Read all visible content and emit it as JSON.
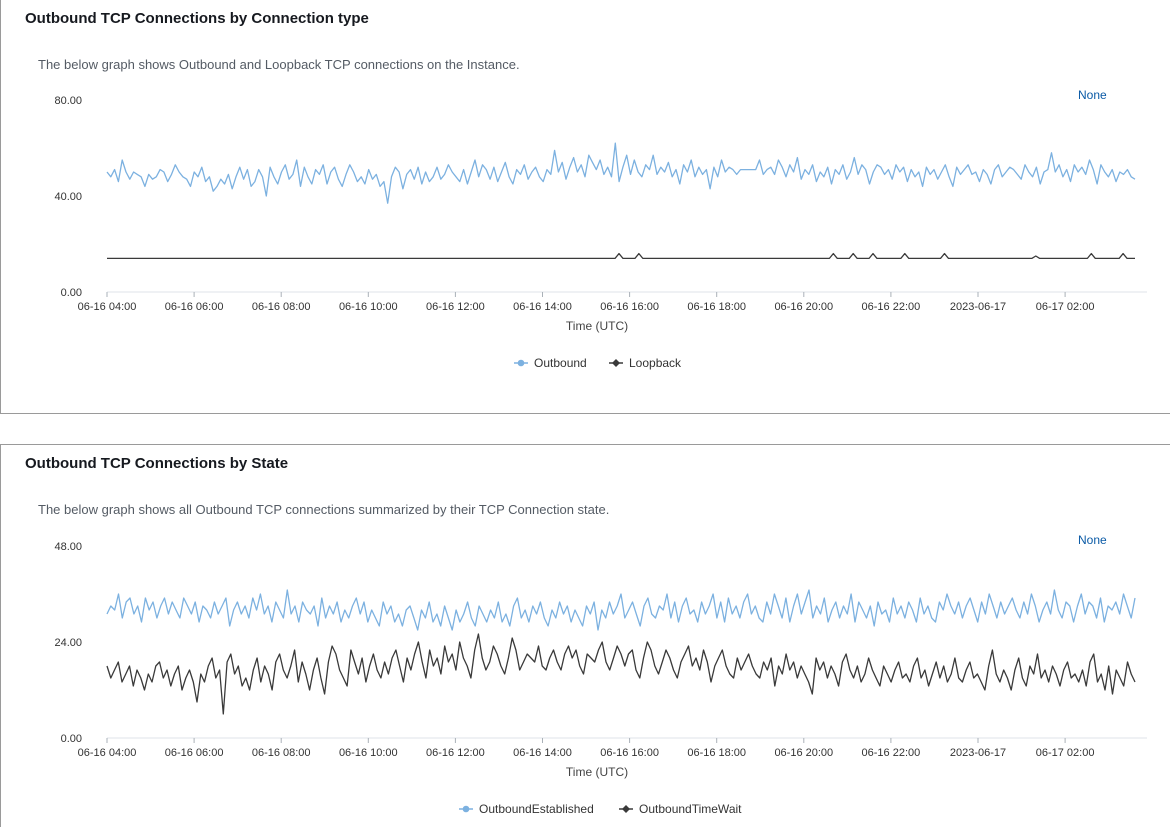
{
  "panels": [
    {
      "title": "Outbound TCP Connections by Connection type",
      "description": "The below graph shows Outbound and Loopback TCP connections on the Instance.",
      "none_label": "None"
    },
    {
      "title": "Outbound TCP Connections by State",
      "description": "The below graph shows all Outbound TCP connections summarized by their TCP Connection state.",
      "none_label": "None"
    }
  ],
  "chart_data": [
    {
      "type": "line",
      "ylim": [
        0,
        80
      ],
      "y_ticks": [
        "0.00",
        "40.00",
        "80.00"
      ],
      "x_tick_labels": [
        "06-16 04:00",
        "06-16 06:00",
        "06-16 08:00",
        "06-16 10:00",
        "06-16 12:00",
        "06-16 14:00",
        "06-16 16:00",
        "06-16 18:00",
        "06-16 20:00",
        "06-16 22:00",
        "2023-06-17",
        "06-17 02:00"
      ],
      "xlabel": "Time (UTC)",
      "grid": false,
      "legend_position": "bottom",
      "series": [
        {
          "name": "Outbound",
          "color": "#7cb1e0",
          "values": [
            50,
            48,
            51,
            46,
            55,
            50,
            47,
            50,
            49,
            48,
            44,
            49,
            47,
            48,
            51,
            50,
            46,
            49,
            53,
            50,
            48,
            47,
            44,
            50,
            48,
            52,
            46,
            48,
            42,
            44,
            47,
            45,
            49,
            43,
            48,
            52,
            47,
            51,
            44,
            46,
            51,
            48,
            40,
            52,
            48,
            45,
            50,
            53,
            47,
            49,
            55,
            44,
            52,
            48,
            45,
            51,
            49,
            53,
            45,
            50,
            52,
            47,
            44,
            49,
            53,
            50,
            46,
            48,
            45,
            51,
            47,
            49,
            44,
            46,
            37,
            48,
            52,
            50,
            43,
            49,
            51,
            47,
            52,
            45,
            50,
            46,
            48,
            52,
            47,
            49,
            53,
            50,
            48,
            46,
            51,
            45,
            50,
            55,
            48,
            53,
            51,
            47,
            52,
            46,
            50,
            54,
            48,
            45,
            51,
            49,
            53,
            47,
            50,
            52,
            48,
            46,
            51,
            49,
            59,
            50,
            54,
            47,
            52,
            56,
            50,
            53,
            48,
            57,
            54,
            51,
            55,
            49,
            52,
            48,
            62,
            46,
            52,
            57,
            49,
            55,
            50,
            48,
            53,
            51,
            57,
            49,
            52,
            50,
            54,
            48,
            51,
            45,
            53,
            50,
            55,
            48,
            52,
            49,
            51,
            43,
            52,
            48,
            55,
            50,
            52,
            51,
            49,
            51,
            51,
            51,
            51,
            51,
            55,
            49,
            51,
            52,
            49,
            55,
            52,
            48,
            53,
            50,
            56,
            47,
            51,
            49,
            53,
            46,
            50,
            48,
            52,
            45,
            51,
            49,
            53,
            47,
            50,
            56,
            49,
            53,
            51,
            45,
            50,
            53,
            52,
            49,
            51,
            47,
            53,
            50,
            52,
            46,
            51,
            48,
            50,
            44,
            52,
            49,
            51,
            47,
            50,
            53,
            48,
            44,
            52,
            49,
            51,
            53,
            49,
            50,
            46,
            51,
            49,
            45,
            51,
            53,
            48,
            50,
            52,
            51,
            49,
            47,
            53,
            50,
            48,
            52,
            45,
            50,
            51,
            58,
            50,
            53,
            48,
            51,
            46,
            53,
            50,
            52,
            49,
            55,
            51,
            45,
            53,
            50,
            48,
            51,
            46,
            50,
            49,
            51,
            48,
            47
          ],
          "values_note": ""
        },
        {
          "name": "Loopback",
          "color": "#3a3a3a",
          "values_constant": 14,
          "spikes": [
            {
              "x_label": "06-16 15:00",
              "value": 16
            },
            {
              "x_label": "06-16 15:15",
              "value": 16
            },
            {
              "x_label": "06-16 18:30",
              "value": 16
            },
            {
              "x_label": "06-16 18:50",
              "value": 16
            },
            {
              "x_label": "06-16 19:05",
              "value": 16
            },
            {
              "x_label": "06-16 19:30",
              "value": 16
            },
            {
              "x_label": "06-16 20:10",
              "value": 16
            },
            {
              "x_label": "2023-06-17 00:20",
              "value": 15
            },
            {
              "x_label": "06-17 01:55",
              "value": 16
            },
            {
              "x_label": "06-17 02:25",
              "value": 16
            }
          ]
        }
      ]
    },
    {
      "type": "line",
      "ylim": [
        0,
        48
      ],
      "y_ticks": [
        "0.00",
        "24.00",
        "48.00"
      ],
      "x_tick_labels": [
        "06-16 04:00",
        "06-16 06:00",
        "06-16 08:00",
        "06-16 10:00",
        "06-16 12:00",
        "06-16 14:00",
        "06-16 16:00",
        "06-16 18:00",
        "06-16 20:00",
        "06-16 22:00",
        "2023-06-17",
        "06-17 02:00"
      ],
      "xlabel": "Time (UTC)",
      "grid": false,
      "legend_position": "bottom",
      "series": [
        {
          "name": "OutboundEstablished",
          "color": "#7cb1e0",
          "values": [
            31,
            33,
            32,
            36,
            30,
            34,
            35,
            31,
            33,
            29,
            35,
            32,
            34,
            30,
            33,
            35,
            31,
            34,
            32,
            30,
            35,
            33,
            31,
            34,
            29,
            33,
            32,
            30,
            34,
            31,
            33,
            35,
            28,
            32,
            34,
            31,
            33,
            30,
            35,
            32,
            36,
            31,
            33,
            29,
            34,
            32,
            30,
            37,
            31,
            33,
            29,
            34,
            32,
            31,
            33,
            28,
            35,
            30,
            33,
            31,
            34,
            29,
            32,
            30,
            33,
            35,
            31,
            34,
            29,
            32,
            30,
            28,
            34,
            31,
            33,
            29,
            31,
            28,
            32,
            33,
            30,
            27,
            32,
            30,
            34,
            29,
            31,
            28,
            33,
            30,
            27,
            32,
            29,
            31,
            34,
            30,
            28,
            33,
            31,
            29,
            32,
            30,
            34,
            29,
            31,
            28,
            33,
            35,
            30,
            32,
            29,
            33,
            31,
            34,
            30,
            28,
            32,
            30,
            34,
            31,
            33,
            29,
            32,
            30,
            28,
            33,
            31,
            34,
            27,
            32,
            30,
            34,
            31,
            33,
            36,
            30,
            32,
            34,
            31,
            28,
            33,
            35,
            31,
            30,
            33,
            32,
            36,
            30,
            34,
            29,
            33,
            35,
            31,
            32,
            29,
            34,
            31,
            33,
            36,
            30,
            34,
            29,
            35,
            31,
            33,
            30,
            34,
            36,
            31,
            33,
            30,
            29,
            34,
            31,
            36,
            33,
            30,
            35,
            29,
            33,
            36,
            31,
            34,
            37,
            30,
            33,
            31,
            35,
            29,
            32,
            34,
            30,
            33,
            31,
            36,
            29,
            34,
            32,
            30,
            33,
            28,
            34,
            31,
            32,
            29,
            35,
            31,
            33,
            30,
            34,
            32,
            29,
            35,
            31,
            33,
            30,
            29,
            34,
            32,
            36,
            33,
            31,
            34,
            30,
            33,
            35,
            32,
            29,
            34,
            31,
            36,
            33,
            30,
            34,
            31,
            33,
            35,
            32,
            30,
            34,
            31,
            36,
            33,
            29,
            32,
            34,
            31,
            37,
            32,
            30,
            34,
            33,
            29,
            33,
            36,
            31,
            34,
            33,
            30,
            35,
            29,
            33,
            32,
            34,
            31,
            36,
            33,
            30,
            35
          ],
          "values_note": ""
        },
        {
          "name": "OutboundTimeWait",
          "color": "#3a3a3a",
          "values": [
            18,
            15,
            17,
            19,
            14,
            16,
            18,
            13,
            17,
            15,
            12,
            16,
            14,
            18,
            19,
            15,
            17,
            13,
            16,
            18,
            12,
            15,
            17,
            14,
            9,
            16,
            14,
            18,
            20,
            15,
            17,
            6,
            19,
            21,
            16,
            18,
            13,
            15,
            12,
            17,
            20,
            14,
            18,
            16,
            12,
            19,
            21,
            17,
            15,
            18,
            22,
            14,
            19,
            16,
            12,
            17,
            20,
            15,
            11,
            19,
            23,
            21,
            17,
            15,
            13,
            22,
            19,
            16,
            20,
            14,
            18,
            21,
            17,
            15,
            19,
            16,
            20,
            22,
            18,
            14,
            20,
            17,
            21,
            24,
            19,
            15,
            22,
            18,
            20,
            16,
            23,
            19,
            21,
            17,
            24,
            20,
            18,
            15,
            22,
            26,
            20,
            17,
            19,
            23,
            21,
            18,
            16,
            20,
            25,
            22,
            17,
            19,
            21,
            20,
            19,
            23,
            18,
            17,
            20,
            22,
            19,
            17,
            21,
            23,
            20,
            22,
            18,
            16,
            21,
            20,
            19,
            22,
            24,
            19,
            17,
            20,
            23,
            21,
            18,
            21,
            22,
            17,
            15,
            20,
            24,
            22,
            18,
            16,
            19,
            22,
            20,
            17,
            15,
            19,
            21,
            23,
            18,
            20,
            17,
            22,
            19,
            14,
            18,
            20,
            22,
            18,
            16,
            15,
            20,
            17,
            19,
            21,
            18,
            16,
            15,
            19,
            17,
            20,
            13,
            18,
            16,
            21,
            17,
            19,
            15,
            18,
            16,
            14,
            11,
            20,
            17,
            19,
            15,
            18,
            16,
            13,
            19,
            21,
            17,
            15,
            18,
            14,
            16,
            20,
            17,
            15,
            13,
            18,
            16,
            14,
            17,
            19,
            15,
            16,
            14,
            18,
            20,
            15,
            17,
            13,
            16,
            19,
            15,
            18,
            14,
            16,
            20,
            15,
            14,
            17,
            19,
            15,
            16,
            14,
            12,
            18,
            22,
            16,
            14,
            17,
            15,
            12,
            17,
            20,
            15,
            13,
            18,
            16,
            21,
            15,
            17,
            14,
            18,
            16,
            13,
            17,
            19,
            15,
            16,
            14,
            17,
            13,
            19,
            21,
            14,
            16,
            12,
            18,
            11,
            17,
            15,
            13,
            19,
            16,
            14
          ],
          "values_note": ""
        }
      ]
    }
  ]
}
